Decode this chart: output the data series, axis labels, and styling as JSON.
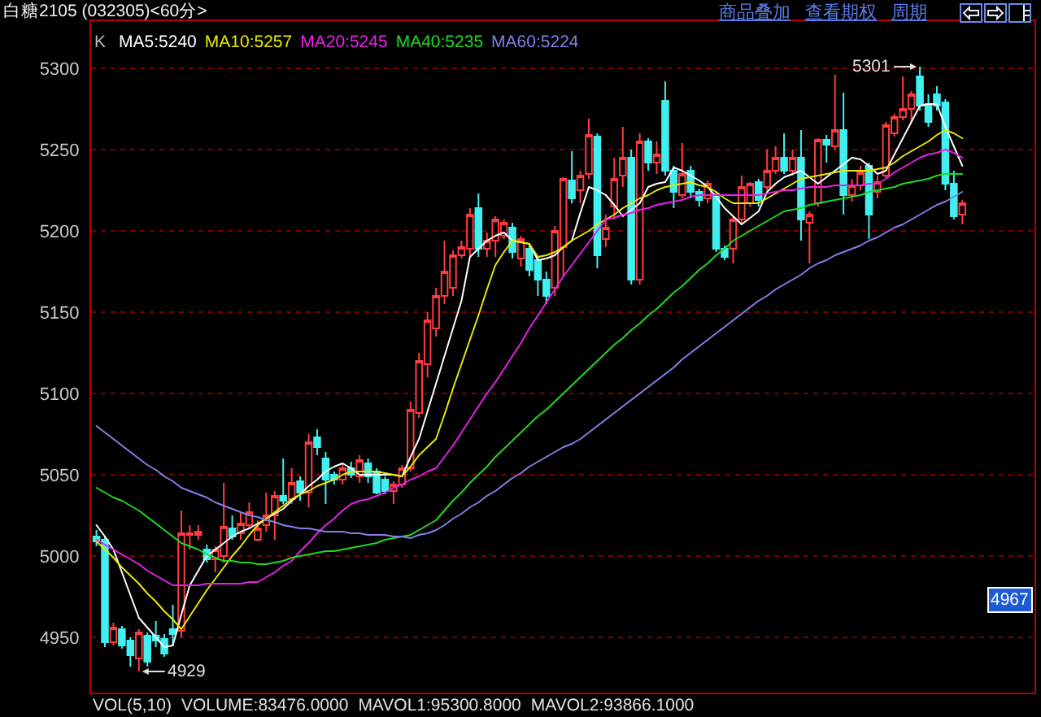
{
  "chart_data": {
    "type": "candlestick",
    "title": "白糖2105 (032305)<60分>",
    "legend_title": "K",
    "legend": "top left",
    "grid": "y",
    "tick_labels": "y",
    "categories": [
      null,
      null,
      null,
      null,
      null,
      null,
      null,
      null,
      null,
      null,
      null,
      null,
      null,
      null,
      null,
      null,
      null,
      null,
      null,
      null,
      null,
      null,
      null,
      null,
      null,
      null,
      null,
      null,
      null,
      null,
      null,
      null,
      null,
      null,
      null,
      null,
      null,
      null,
      null,
      null,
      null,
      null,
      null,
      null,
      null,
      null,
      null,
      null,
      null,
      null,
      null,
      null,
      null,
      null,
      null,
      null,
      null,
      null,
      null,
      null,
      null,
      null,
      null,
      null,
      null,
      null,
      null,
      null,
      null,
      null,
      null,
      null,
      null,
      null,
      null,
      null,
      null,
      null,
      null,
      null,
      null,
      null,
      null,
      null,
      null,
      null,
      null,
      null,
      null,
      null,
      null,
      null,
      null,
      null,
      null,
      null,
      null,
      null,
      null,
      null,
      null,
      null,
      null
    ],
    "ylim": [
      4916,
      5329
    ],
    "yticks": [
      4950,
      5000,
      5050,
      5100,
      5150,
      5200,
      5250,
      5300
    ],
    "ohlc": [
      [
        5012,
        5016,
        5006,
        5009
      ],
      [
        5010,
        5012,
        4944,
        4947
      ],
      [
        4947,
        4959,
        4945,
        4956
      ],
      [
        4955,
        4957,
        4943,
        4945
      ],
      [
        4948,
        4950,
        4932,
        4939
      ],
      [
        4937,
        4955,
        4929,
        4953
      ],
      [
        4951,
        4953,
        4932,
        4935
      ],
      [
        4951,
        4960,
        4944,
        4948
      ],
      [
        4949,
        4952,
        4938,
        4940
      ],
      [
        4955,
        4970,
        4945,
        4952
      ],
      [
        4954,
        5028,
        4950,
        5014
      ],
      [
        5013,
        5019,
        5004,
        5014
      ],
      [
        5013,
        5019,
        5010,
        5015
      ],
      [
        5004,
        5007,
        4996,
        4998
      ],
      [
        4998,
        5006,
        4990,
        5004
      ],
      [
        5000,
        5045,
        4996,
        5018
      ],
      [
        5017,
        5025,
        5010,
        5012
      ],
      [
        5014,
        5027,
        5010,
        5020
      ],
      [
        5019,
        5033,
        5017,
        5027
      ],
      [
        5010,
        5022,
        5009,
        5017
      ],
      [
        5019,
        5039,
        5015,
        5025
      ],
      [
        5025,
        5040,
        5010,
        5037
      ],
      [
        5037,
        5060,
        5032,
        5034
      ],
      [
        5035,
        5054,
        5032,
        5045
      ],
      [
        5046,
        5049,
        5034,
        5039
      ],
      [
        5039,
        5075,
        5030,
        5070
      ],
      [
        5073,
        5078,
        5062,
        5067
      ],
      [
        5060,
        5064,
        5032,
        5047
      ],
      [
        5050,
        5052,
        5044,
        5047
      ],
      [
        5047,
        5057,
        5044,
        5054
      ],
      [
        5054,
        5058,
        5048,
        5050
      ],
      [
        5049,
        5062,
        5045,
        5059
      ],
      [
        5057,
        5060,
        5045,
        5049
      ],
      [
        5052,
        5054,
        5038,
        5039
      ],
      [
        5047,
        5049,
        5038,
        5040
      ],
      [
        5040,
        5046,
        5032,
        5044
      ],
      [
        5044,
        5056,
        5042,
        5054
      ],
      [
        5054,
        5095,
        5052,
        5090
      ],
      [
        5088,
        5125,
        5085,
        5120
      ],
      [
        5118,
        5150,
        5110,
        5145
      ],
      [
        5140,
        5165,
        5135,
        5160
      ],
      [
        5160,
        5194,
        5155,
        5175
      ],
      [
        5165,
        5188,
        5160,
        5185
      ],
      [
        5185,
        5194,
        5183,
        5190
      ],
      [
        5189,
        5214,
        5184,
        5210
      ],
      [
        5214,
        5223,
        5184,
        5189
      ],
      [
        5189,
        5199,
        5184,
        5194
      ],
      [
        5194,
        5209,
        5184,
        5207
      ],
      [
        5197,
        5207,
        5195,
        5205
      ],
      [
        5202,
        5205,
        5183,
        5187
      ],
      [
        5183,
        5197,
        5178,
        5195
      ],
      [
        5189,
        5192,
        5172,
        5176
      ],
      [
        5182,
        5184,
        5160,
        5170
      ],
      [
        5170,
        5175,
        5155,
        5160
      ],
      [
        5165,
        5203,
        5160,
        5200
      ],
      [
        5190,
        5233,
        5172,
        5232
      ],
      [
        5231,
        5249,
        5217,
        5220
      ],
      [
        5225,
        5237,
        5217,
        5234
      ],
      [
        5235,
        5269,
        5232,
        5259
      ],
      [
        5258,
        5260,
        5177,
        5185
      ],
      [
        5195,
        5210,
        5190,
        5202
      ],
      [
        5215,
        5245,
        5207,
        5232
      ],
      [
        5234,
        5264,
        5227,
        5245
      ],
      [
        5245,
        5250,
        5167,
        5170
      ],
      [
        5170,
        5260,
        5167,
        5255
      ],
      [
        5255,
        5257,
        5237,
        5242
      ],
      [
        5242,
        5255,
        5235,
        5247
      ],
      [
        5280,
        5292,
        5234,
        5237
      ],
      [
        5237,
        5240,
        5214,
        5224
      ],
      [
        5222,
        5254,
        5220,
        5235
      ],
      [
        5237,
        5240,
        5220,
        5224
      ],
      [
        5224,
        5226,
        5215,
        5219
      ],
      [
        5220,
        5231,
        5217,
        5229
      ],
      [
        5222,
        5224,
        5187,
        5189
      ],
      [
        5189,
        5191,
        5182,
        5184
      ],
      [
        5189,
        5209,
        5180,
        5207
      ],
      [
        5207,
        5234,
        5205,
        5227
      ],
      [
        5217,
        5230,
        5215,
        5229
      ],
      [
        5230,
        5232,
        5215,
        5219
      ],
      [
        5227,
        5250,
        5225,
        5237
      ],
      [
        5237,
        5252,
        5235,
        5245
      ],
      [
        5245,
        5260,
        5235,
        5237
      ],
      [
        5237,
        5250,
        5234,
        5245
      ],
      [
        5245,
        5262,
        5194,
        5207
      ],
      [
        5205,
        5212,
        5180,
        5210
      ],
      [
        5217,
        5257,
        5215,
        5256
      ],
      [
        5256,
        5259,
        5242,
        5253
      ],
      [
        5252,
        5296,
        5250,
        5262
      ],
      [
        5262,
        5285,
        5210,
        5222
      ],
      [
        5222,
        5232,
        5218,
        5228
      ],
      [
        5228,
        5240,
        5225,
        5236
      ],
      [
        5240,
        5242,
        5195,
        5210
      ],
      [
        5224,
        5234,
        5220,
        5230
      ],
      [
        5234,
        5267,
        5232,
        5265
      ],
      [
        5260,
        5272,
        5258,
        5270
      ],
      [
        5270,
        5295,
        5268,
        5275
      ],
      [
        5275,
        5286,
        5267,
        5284
      ],
      [
        5295,
        5301,
        5274,
        5277
      ],
      [
        5278,
        5284,
        5264,
        5267
      ],
      [
        5284,
        5289,
        5274,
        5277
      ],
      [
        5279,
        5281,
        5225,
        5229
      ],
      [
        5229,
        5237,
        5207,
        5209
      ],
      [
        5210,
        5219,
        5204,
        5217
      ]
    ],
    "colors": [
      "#40f0f0",
      "#40f0f0",
      "#ff3c3c",
      "#40f0f0",
      "#40f0f0",
      "#ff3c3c",
      "#40f0f0",
      "#40f0f0",
      "#40f0f0",
      "#40f0f0",
      "#ff3c3c",
      "#ff3c3c",
      "#ff3c3c",
      "#40f0f0",
      "#ff3c3c",
      "#ff3c3c",
      "#40f0f0",
      "#ff3c3c",
      "#ff3c3c",
      "#ff3c3c",
      "#ff3c3c",
      "#ff3c3c",
      "#40f0f0",
      "#ff3c3c",
      "#40f0f0",
      "#ff3c3c",
      "#40f0f0",
      "#40f0f0",
      "#40f0f0",
      "#ff3c3c",
      "#40f0f0",
      "#ff3c3c",
      "#40f0f0",
      "#40f0f0",
      "#40f0f0",
      "#ff3c3c",
      "#ff3c3c",
      "#ff3c3c",
      "#ff3c3c",
      "#ff3c3c",
      "#ff3c3c",
      "#ff3c3c",
      "#ff3c3c",
      "#ff3c3c",
      "#ff3c3c",
      "#40f0f0",
      "#ff3c3c",
      "#ff3c3c",
      "#ff3c3c",
      "#40f0f0",
      "#ff3c3c",
      "#40f0f0",
      "#40f0f0",
      "#40f0f0",
      "#ff3c3c",
      "#ff3c3c",
      "#40f0f0",
      "#ff3c3c",
      "#ff3c3c",
      "#40f0f0",
      "#ff3c3c",
      "#ff3c3c",
      "#ff3c3c",
      "#40f0f0",
      "#ff3c3c",
      "#40f0f0",
      "#ff3c3c",
      "#40f0f0",
      "#40f0f0",
      "#ff3c3c",
      "#40f0f0",
      "#40f0f0",
      "#ff3c3c",
      "#40f0f0",
      "#40f0f0",
      "#ff3c3c",
      "#ff3c3c",
      "#ff3c3c",
      "#40f0f0",
      "#ff3c3c",
      "#ff3c3c",
      "#40f0f0",
      "#ff3c3c",
      "#40f0f0",
      "#ff3c3c",
      "#ff3c3c",
      "#40f0f0",
      "#ff3c3c",
      "#40f0f0",
      "#ff3c3c",
      "#ff3c3c",
      "#40f0f0",
      "#ff3c3c",
      "#ff3c3c",
      "#ff3c3c",
      "#ff3c3c",
      "#ff3c3c",
      "#40f0f0",
      "#40f0f0",
      "#40f0f0",
      "#40f0f0",
      "#40f0f0",
      "#ff3c3c"
    ],
    "series": [
      {
        "type": "line",
        "name": "MA5:5240",
        "color": "#ffffff",
        "values": [
          5019,
          5012,
          5004,
          4990,
          4976,
          4962,
          4956,
          4950,
          4944,
          4945,
          4964,
          4982,
          4991,
          5000,
          5004,
          5008,
          5012,
          5015,
          5017,
          5020,
          5023,
          5026,
          5029,
          5034,
          5038,
          5043,
          5047,
          5052,
          5055,
          5057,
          5054,
          5050,
          5050,
          5050,
          5050,
          5050,
          5049,
          5061,
          5072,
          5089,
          5106,
          5123,
          5140,
          5157,
          5184,
          5189,
          5194,
          5197,
          5199,
          5194,
          5193,
          5192,
          5182,
          5183,
          5185,
          5190,
          5194,
          5211,
          5227,
          5225,
          5222,
          5216,
          5209,
          5213,
          5217,
          5227,
          5229,
          5230,
          5239,
          5237,
          5234,
          5231,
          5227,
          5221,
          5214,
          5209,
          5204,
          5208,
          5212,
          5224,
          5229,
          5233,
          5235,
          5237,
          5233,
          5229,
          5233,
          5237,
          5241,
          5245,
          5244,
          5240,
          5235,
          5237,
          5247,
          5257,
          5267,
          5277,
          5278,
          5278,
          5264,
          5252,
          5240
        ]
      },
      {
        "type": "line",
        "name": "MA10:5257",
        "color": "#e8e800",
        "values": [
          5009,
          5004,
          4999,
          4993,
          4988,
          4983,
          4977,
          4972,
          4966,
          4961,
          4955,
          4963,
          4971,
          4979,
          4986,
          4993,
          5000,
          5006,
          5013,
          5019,
          5023,
          5027,
          5031,
          5035,
          5038,
          5040,
          5043,
          5045,
          5047,
          5050,
          5052,
          5052,
          5052,
          5052,
          5051,
          5050,
          5049,
          5055,
          5062,
          5067,
          5072,
          5087,
          5103,
          5118,
          5133,
          5148,
          5164,
          5179,
          5187,
          5194,
          5193,
          5192,
          5184,
          5185,
          5187,
          5190,
          5194,
          5197,
          5200,
          5204,
          5207,
          5210,
          5214,
          5217,
          5220,
          5222,
          5225,
          5227,
          5228,
          5229,
          5230,
          5228,
          5227,
          5224,
          5220,
          5217,
          5217,
          5217,
          5217,
          5220,
          5223,
          5226,
          5229,
          5232,
          5233,
          5234,
          5235,
          5236,
          5237,
          5237,
          5237,
          5237,
          5238,
          5239,
          5242,
          5246,
          5249,
          5252,
          5255,
          5259,
          5262,
          5260,
          5257
        ]
      },
      {
        "type": "line",
        "name": "MA20:5245",
        "color": "#e820e8",
        "values": [
          5010,
          5007,
          5004,
          5001,
          4998,
          4995,
          4991,
          4988,
          4985,
          4982,
          4982,
          4982,
          4982,
          4983,
          4983,
          4983,
          4983,
          4983,
          4984,
          4984,
          4987,
          4990,
          4994,
          4997,
          5003,
          5008,
          5014,
          5019,
          5023,
          5028,
          5032,
          5034,
          5035,
          5037,
          5039,
          5042,
          5044,
          5047,
          5049,
          5052,
          5054,
          5061,
          5068,
          5076,
          5084,
          5092,
          5100,
          5107,
          5115,
          5123,
          5131,
          5140,
          5148,
          5156,
          5164,
          5172,
          5179,
          5186,
          5193,
          5200,
          5207,
          5208,
          5210,
          5211,
          5213,
          5214,
          5216,
          5217,
          5218,
          5219,
          5221,
          5222,
          5222,
          5222,
          5222,
          5222,
          5222,
          5222,
          5222,
          5223,
          5224,
          5225,
          5225,
          5226,
          5227,
          5227,
          5227,
          5228,
          5228,
          5228,
          5228,
          5229,
          5229,
          5232,
          5236,
          5239,
          5242,
          5245,
          5247,
          5248,
          5250,
          5248,
          5245
        ]
      },
      {
        "type": "line",
        "name": "MA40:5235",
        "color": "#20d820",
        "values": [
          5042,
          5039,
          5036,
          5034,
          5031,
          5028,
          5024,
          5020,
          5016,
          5012,
          5008,
          5006,
          5004,
          5001,
          4999,
          4997,
          4997,
          4996,
          4996,
          4995,
          4995,
          4996,
          4997,
          4999,
          5000,
          5001,
          5002,
          5003,
          5003,
          5004,
          5005,
          5006,
          5007,
          5008,
          5010,
          5011,
          5012,
          5013,
          5016,
          5019,
          5022,
          5028,
          5034,
          5039,
          5045,
          5050,
          5055,
          5061,
          5066,
          5071,
          5076,
          5081,
          5086,
          5090,
          5095,
          5100,
          5105,
          5110,
          5115,
          5120,
          5125,
          5130,
          5134,
          5139,
          5143,
          5148,
          5152,
          5157,
          5162,
          5166,
          5171,
          5176,
          5180,
          5185,
          5189,
          5194,
          5197,
          5200,
          5203,
          5206,
          5209,
          5212,
          5213,
          5214,
          5216,
          5217,
          5218,
          5219,
          5220,
          5221,
          5222,
          5224,
          5225,
          5226,
          5227,
          5229,
          5230,
          5231,
          5232,
          5234,
          5235,
          5235,
          5235
        ]
      },
      {
        "type": "line",
        "name": "MA60:5224",
        "color": "#8080e8",
        "values": [
          5080,
          5076,
          5072,
          5068,
          5064,
          5060,
          5056,
          5053,
          5049,
          5046,
          5042,
          5040,
          5038,
          5036,
          5033,
          5031,
          5029,
          5027,
          5025,
          5024,
          5022,
          5021,
          5019,
          5018,
          5017,
          5017,
          5016,
          5015,
          5015,
          5015,
          5014,
          5014,
          5013,
          5013,
          5013,
          5012,
          5012,
          5011,
          5013,
          5014,
          5016,
          5019,
          5023,
          5026,
          5030,
          5033,
          5037,
          5040,
          5044,
          5048,
          5051,
          5055,
          5058,
          5061,
          5064,
          5067,
          5069,
          5072,
          5076,
          5080,
          5084,
          5088,
          5092,
          5096,
          5100,
          5104,
          5108,
          5112,
          5116,
          5121,
          5125,
          5129,
          5133,
          5137,
          5141,
          5145,
          5149,
          5153,
          5157,
          5160,
          5164,
          5167,
          5170,
          5173,
          5177,
          5180,
          5182,
          5185,
          5187,
          5189,
          5191,
          5194,
          5196,
          5199,
          5202,
          5204,
          5207,
          5210,
          5213,
          5216,
          5218,
          5221,
          5224
        ]
      }
    ],
    "annotations": [
      "5301",
      "4929",
      "4967",
      "商品叠加",
      "查看期权",
      "周期",
      "VOL(5,10)",
      "VOLUME:83476.0000",
      "MAVOL1:95300.8000",
      "MAVOL2:93866.1000"
    ]
  }
}
